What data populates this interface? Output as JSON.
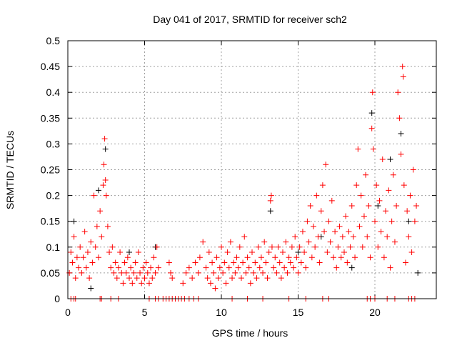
{
  "chart_data": {
    "type": "scatter",
    "title": "Day 041 of 2017, SRMTID for receiver sch2",
    "xlabel": "GPS time / hours",
    "ylabel": "SRMTID / TECUs",
    "xlim": [
      0,
      24
    ],
    "ylim": [
      0,
      0.5
    ],
    "xticks": [
      0,
      5,
      10,
      15,
      20
    ],
    "xtick_labels": [
      "0",
      "5",
      "10",
      "15",
      "20"
    ],
    "yticks": [
      0,
      0.05,
      0.1,
      0.15,
      0.2,
      0.25,
      0.3,
      0.35,
      0.4,
      0.45,
      0.5
    ],
    "ytick_labels": [
      "0",
      "0.05",
      "0.1",
      "0.15",
      "0.2",
      "0.25",
      "0.3",
      "0.35",
      "0.4",
      "0.45",
      "0.5"
    ],
    "grid": true,
    "marker": "+",
    "series": [
      {
        "name": "black",
        "color": "#000000",
        "points": [
          [
            0.4,
            0.15
          ],
          [
            1.5,
            0.02
          ],
          [
            2.0,
            0.21
          ],
          [
            2.45,
            0.29
          ],
          [
            4.0,
            0.09
          ],
          [
            5.7,
            0.1
          ],
          [
            13.2,
            0.17
          ],
          [
            15.0,
            0.09
          ],
          [
            16.5,
            0.12
          ],
          [
            18.5,
            0.06
          ],
          [
            19.8,
            0.36
          ],
          [
            20.2,
            0.18
          ],
          [
            21.0,
            0.27
          ],
          [
            21.7,
            0.32
          ],
          [
            22.2,
            0.15
          ],
          [
            22.8,
            0.05
          ]
        ]
      },
      {
        "name": "red",
        "color": "#ff0000",
        "points": [
          [
            0.1,
            0.05
          ],
          [
            0.2,
            0.09
          ],
          [
            0.3,
            0.07
          ],
          [
            0.4,
            0.12
          ],
          [
            0.5,
            0.04
          ],
          [
            0.6,
            0.08
          ],
          [
            0.7,
            0.06
          ],
          [
            0.8,
            0.1
          ],
          [
            0.9,
            0.05
          ],
          [
            1.0,
            0.08
          ],
          [
            1.1,
            0.13
          ],
          [
            1.2,
            0.06
          ],
          [
            1.3,
            0.09
          ],
          [
            1.4,
            0.04
          ],
          [
            1.5,
            0.11
          ],
          [
            1.6,
            0.07
          ],
          [
            1.7,
            0.2
          ],
          [
            1.8,
            0.1
          ],
          [
            1.9,
            0.14
          ],
          [
            2.0,
            0.08
          ],
          [
            2.1,
            0.17
          ],
          [
            2.2,
            0.12
          ],
          [
            2.3,
            0.22
          ],
          [
            2.35,
            0.26
          ],
          [
            2.4,
            0.31
          ],
          [
            2.45,
            0.23
          ],
          [
            2.5,
            0.2
          ],
          [
            2.6,
            0.14
          ],
          [
            2.7,
            0.09
          ],
          [
            2.8,
            0.06
          ],
          [
            2.9,
            0.1
          ],
          [
            3.0,
            0.05
          ],
          [
            3.1,
            0.07
          ],
          [
            3.2,
            0.04
          ],
          [
            3.3,
            0.06
          ],
          [
            3.4,
            0.09
          ],
          [
            3.5,
            0.05
          ],
          [
            3.6,
            0.03
          ],
          [
            3.7,
            0.07
          ],
          [
            3.8,
            0.05
          ],
          [
            3.9,
            0.08
          ],
          [
            4.0,
            0.04
          ],
          [
            4.1,
            0.06
          ],
          [
            4.2,
            0.03
          ],
          [
            4.3,
            0.05
          ],
          [
            4.4,
            0.07
          ],
          [
            4.5,
            0.04
          ],
          [
            4.6,
            0.09
          ],
          [
            4.7,
            0.05
          ],
          [
            4.8,
            0.03
          ],
          [
            4.9,
            0.06
          ],
          [
            5.0,
            0.04
          ],
          [
            5.1,
            0.07
          ],
          [
            5.2,
            0.05
          ],
          [
            5.3,
            0.03
          ],
          [
            5.4,
            0.06
          ],
          [
            5.5,
            0.04
          ],
          [
            5.6,
            0.08
          ],
          [
            5.7,
            0.05
          ],
          [
            5.8,
            0.1
          ],
          [
            5.9,
            0.06
          ],
          [
            6.6,
            0.07
          ],
          [
            6.7,
            0.05
          ],
          [
            6.8,
            0.04
          ],
          [
            7.5,
            0.03
          ],
          [
            7.7,
            0.05
          ],
          [
            7.9,
            0.06
          ],
          [
            8.1,
            0.04
          ],
          [
            8.3,
            0.07
          ],
          [
            8.5,
            0.05
          ],
          [
            8.6,
            0.08
          ],
          [
            8.8,
            0.11
          ],
          [
            9.0,
            0.06
          ],
          [
            9.1,
            0.04
          ],
          [
            9.2,
            0.09
          ],
          [
            9.3,
            0.03
          ],
          [
            9.4,
            0.07
          ],
          [
            9.5,
            0.05
          ],
          [
            9.6,
            0.02
          ],
          [
            9.7,
            0.08
          ],
          [
            9.8,
            0.04
          ],
          [
            9.9,
            0.06
          ],
          [
            10.0,
            0.1
          ],
          [
            10.1,
            0.05
          ],
          [
            10.2,
            0.07
          ],
          [
            10.3,
            0.03
          ],
          [
            10.4,
            0.09
          ],
          [
            10.5,
            0.06
          ],
          [
            10.6,
            0.11
          ],
          [
            10.7,
            0.04
          ],
          [
            10.8,
            0.07
          ],
          [
            10.9,
            0.05
          ],
          [
            11.0,
            0.08
          ],
          [
            11.1,
            0.06
          ],
          [
            11.2,
            0.1
          ],
          [
            11.3,
            0.04
          ],
          [
            11.4,
            0.07
          ],
          [
            11.5,
            0.12
          ],
          [
            11.6,
            0.05
          ],
          [
            11.7,
            0.08
          ],
          [
            11.8,
            0.06
          ],
          [
            11.9,
            0.03
          ],
          [
            12.0,
            0.09
          ],
          [
            12.1,
            0.05
          ],
          [
            12.2,
            0.07
          ],
          [
            12.3,
            0.04
          ],
          [
            12.4,
            0.1
          ],
          [
            12.5,
            0.06
          ],
          [
            12.6,
            0.08
          ],
          [
            12.7,
            0.05
          ],
          [
            12.8,
            0.11
          ],
          [
            12.9,
            0.07
          ],
          [
            13.0,
            0.04
          ],
          [
            13.1,
            0.09
          ],
          [
            13.2,
            0.19
          ],
          [
            13.25,
            0.2
          ],
          [
            13.3,
            0.1
          ],
          [
            13.4,
            0.06
          ],
          [
            13.5,
            0.08
          ],
          [
            13.6,
            0.05
          ],
          [
            13.7,
            0.1
          ],
          [
            13.8,
            0.07
          ],
          [
            13.9,
            0.04
          ],
          [
            14.0,
            0.09
          ],
          [
            14.1,
            0.06
          ],
          [
            14.2,
            0.11
          ],
          [
            14.3,
            0.05
          ],
          [
            14.4,
            0.08
          ],
          [
            14.5,
            0.07
          ],
          [
            14.6,
            0.1
          ],
          [
            14.7,
            0.06
          ],
          [
            14.8,
            0.12
          ],
          [
            14.9,
            0.08
          ],
          [
            15.0,
            0.05
          ],
          [
            15.1,
            0.1
          ],
          [
            15.2,
            0.07
          ],
          [
            15.3,
            0.13
          ],
          [
            15.4,
            0.09
          ],
          [
            15.5,
            0.06
          ],
          [
            15.6,
            0.15
          ],
          [
            15.7,
            0.11
          ],
          [
            15.8,
            0.18
          ],
          [
            15.9,
            0.08
          ],
          [
            16.0,
            0.14
          ],
          [
            16.1,
            0.1
          ],
          [
            16.2,
            0.2
          ],
          [
            16.3,
            0.12
          ],
          [
            16.4,
            0.07
          ],
          [
            16.5,
            0.17
          ],
          [
            16.6,
            0.22
          ],
          [
            16.7,
            0.13
          ],
          [
            16.8,
            0.26
          ],
          [
            16.9,
            0.09
          ],
          [
            17.0,
            0.15
          ],
          [
            17.1,
            0.11
          ],
          [
            17.2,
            0.19
          ],
          [
            17.3,
            0.08
          ],
          [
            17.4,
            0.13
          ],
          [
            17.5,
            0.06
          ],
          [
            17.6,
            0.1
          ],
          [
            17.7,
            0.14
          ],
          [
            17.8,
            0.08
          ],
          [
            17.9,
            0.12
          ],
          [
            18.0,
            0.09
          ],
          [
            18.1,
            0.16
          ],
          [
            18.2,
            0.07
          ],
          [
            18.3,
            0.13
          ],
          [
            18.4,
            0.1
          ],
          [
            18.5,
            0.18
          ],
          [
            18.6,
            0.12
          ],
          [
            18.7,
            0.08
          ],
          [
            18.8,
            0.22
          ],
          [
            18.9,
            0.29
          ],
          [
            19.0,
            0.14
          ],
          [
            19.1,
            0.2
          ],
          [
            19.2,
            0.1
          ],
          [
            19.3,
            0.16
          ],
          [
            19.4,
            0.24
          ],
          [
            19.5,
            0.12
          ],
          [
            19.6,
            0.18
          ],
          [
            19.7,
            0.08
          ],
          [
            19.8,
            0.33
          ],
          [
            19.85,
            0.4
          ],
          [
            19.9,
            0.29
          ],
          [
            20.0,
            0.15
          ],
          [
            20.1,
            0.22
          ],
          [
            20.2,
            0.1
          ],
          [
            20.3,
            0.19
          ],
          [
            20.4,
            0.13
          ],
          [
            20.5,
            0.27
          ],
          [
            20.6,
            0.08
          ],
          [
            20.7,
            0.17
          ],
          [
            20.8,
            0.12
          ],
          [
            20.9,
            0.21
          ],
          [
            21.0,
            0.06
          ],
          [
            21.1,
            0.15
          ],
          [
            21.2,
            0.24
          ],
          [
            21.3,
            0.11
          ],
          [
            21.4,
            0.18
          ],
          [
            21.5,
            0.4
          ],
          [
            21.6,
            0.35
          ],
          [
            21.7,
            0.28
          ],
          [
            21.8,
            0.45
          ],
          [
            21.85,
            0.43
          ],
          [
            21.9,
            0.22
          ],
          [
            22.0,
            0.07
          ],
          [
            22.1,
            0.17
          ],
          [
            22.2,
            0.12
          ],
          [
            22.3,
            0.2
          ],
          [
            22.4,
            0.09
          ],
          [
            22.5,
            0.25
          ],
          [
            22.6,
            0.15
          ],
          [
            22.7,
            0.18
          ],
          [
            0.2,
            0
          ],
          [
            0.4,
            0
          ],
          [
            0.5,
            0
          ],
          [
            2.1,
            0
          ],
          [
            2.2,
            0
          ],
          [
            2.8,
            0
          ],
          [
            3.3,
            0
          ],
          [
            5.3,
            0
          ],
          [
            5.7,
            0
          ],
          [
            5.9,
            0
          ],
          [
            6.2,
            0
          ],
          [
            6.4,
            0
          ],
          [
            6.6,
            0
          ],
          [
            6.8,
            0
          ],
          [
            7.0,
            0
          ],
          [
            7.2,
            0
          ],
          [
            7.4,
            0
          ],
          [
            7.6,
            0
          ],
          [
            7.9,
            0
          ],
          [
            8.2,
            0
          ],
          [
            8.5,
            0
          ],
          [
            10.7,
            0
          ],
          [
            11.7,
            0
          ],
          [
            12.7,
            0
          ],
          [
            14.4,
            0
          ],
          [
            15.5,
            0
          ],
          [
            16.6,
            0
          ],
          [
            17.0,
            0
          ],
          [
            19.5,
            0
          ],
          [
            19.7,
            0
          ],
          [
            20.0,
            0
          ],
          [
            20.8,
            0
          ],
          [
            21.3,
            0
          ],
          [
            22.2,
            0
          ],
          [
            22.4,
            0
          ],
          [
            22.6,
            0
          ]
        ]
      }
    ]
  }
}
